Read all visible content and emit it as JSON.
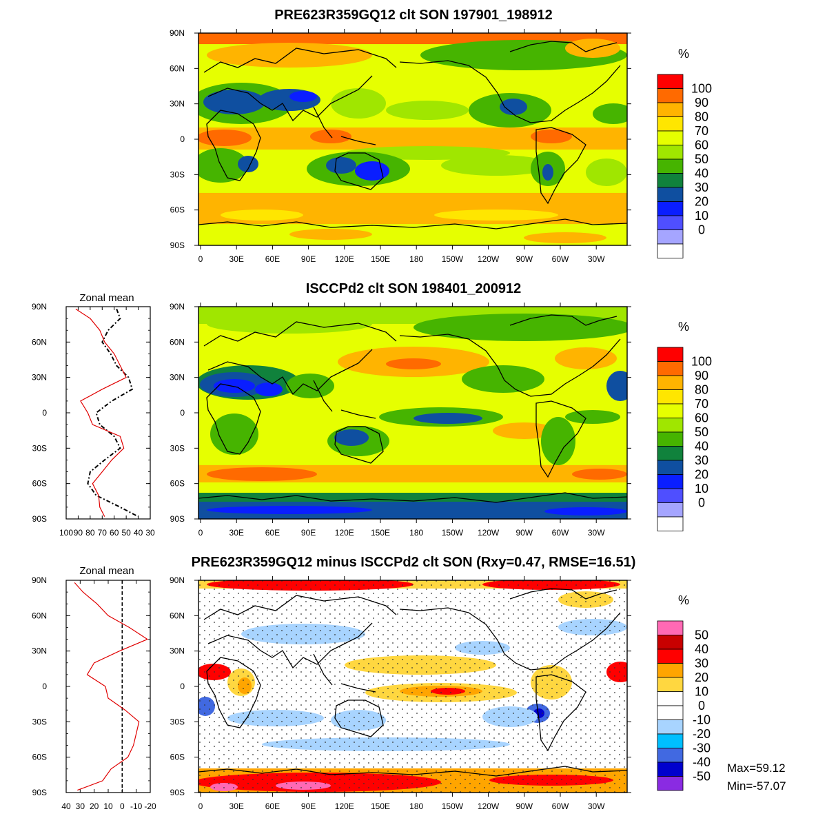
{
  "panels": [
    {
      "title": "PRE623R359GQ12 clt SON 197901_198912",
      "unit_label": "%",
      "lat_ticks": [
        "90N",
        "60N",
        "30N",
        "0",
        "30S",
        "60S",
        "90S"
      ],
      "lon_ticks": [
        "0",
        "30E",
        "60E",
        "90E",
        "120E",
        "150E",
        "180",
        "150W",
        "120W",
        "90W",
        "60W",
        "30W"
      ],
      "colorbar": {
        "labels": [
          "100",
          "90",
          "80",
          "70",
          "60",
          "50",
          "40",
          "30",
          "20",
          "10",
          "0"
        ],
        "colors": [
          "#ff0000",
          "#ff6a00",
          "#ffb400",
          "#ffe600",
          "#e6ff00",
          "#a0e600",
          "#46b400",
          "#10823c",
          "#0f4fa0",
          "#0a1eff",
          "#4f4fff",
          "#a5a5ff",
          "#ffffff"
        ]
      },
      "map_colors": {
        "background": "#e6ff00",
        "high": "#ffb400",
        "veryhigh": "#ff6a00",
        "low": "#46b400",
        "verylow": "#0f4fa0",
        "lowest": "#0a1eff"
      }
    },
    {
      "title": "ISCCPd2 clt SON 198401_200912",
      "unit_label": "%",
      "lat_ticks": [
        "90N",
        "60N",
        "30N",
        "0",
        "30S",
        "60S",
        "90S"
      ],
      "lon_ticks": [
        "0",
        "30E",
        "60E",
        "90E",
        "120E",
        "150E",
        "180",
        "150W",
        "120W",
        "90W",
        "60W",
        "30W"
      ],
      "colorbar": {
        "labels": [
          "100",
          "90",
          "80",
          "70",
          "60",
          "50",
          "40",
          "30",
          "20",
          "10",
          "0"
        ],
        "colors": [
          "#ff0000",
          "#ff6a00",
          "#ffb400",
          "#ffe600",
          "#e6ff00",
          "#a0e600",
          "#46b400",
          "#10823c",
          "#0f4fa0",
          "#0a1eff",
          "#4f4fff",
          "#a5a5ff",
          "#ffffff"
        ]
      },
      "zonal_mean": {
        "title": "Zonal mean",
        "lat_ticks": [
          "90N",
          "60N",
          "30N",
          "0",
          "30S",
          "60S",
          "90S"
        ],
        "x_ticks": [
          "100",
          "90",
          "80",
          "70",
          "60",
          "50",
          "40",
          "30"
        ]
      }
    },
    {
      "title": "PRE623R359GQ12 minus ISCCPd2 clt SON (Rxy=0.47, RMSE=16.51)",
      "unit_label": "%",
      "lat_ticks": [
        "90N",
        "60N",
        "30N",
        "0",
        "30S",
        "60S",
        "90S"
      ],
      "lon_ticks": [
        "0",
        "30E",
        "60E",
        "90E",
        "120E",
        "150E",
        "180",
        "150W",
        "120W",
        "90W",
        "60W",
        "30W"
      ],
      "colorbar": {
        "labels": [
          "50",
          "40",
          "30",
          "20",
          "10",
          "0",
          "-10",
          "-20",
          "-30",
          "-40",
          "-50"
        ],
        "colors": [
          "#ff69b4",
          "#c80000",
          "#ff0000",
          "#ffa500",
          "#ffd740",
          "#ffffff",
          "#ffffff",
          "#a8d4ff",
          "#00bfff",
          "#4169e1",
          "#0000cd",
          "#8a2be2"
        ]
      },
      "zonal_mean": {
        "title": "Zonal mean",
        "lat_ticks": [
          "90N",
          "60N",
          "30N",
          "0",
          "30S",
          "60S",
          "90S"
        ],
        "x_ticks": [
          "40",
          "30",
          "20",
          "10",
          "0",
          "-10",
          "-20"
        ]
      },
      "max_label": "Max=59.12",
      "min_label": "Min=-57.07"
    }
  ],
  "zonal_series": {
    "panel2_model": {
      "lat": [
        88,
        80,
        70,
        60,
        50,
        40,
        30,
        20,
        10,
        0,
        -10,
        -20,
        -30,
        -40,
        -50,
        -60,
        -70,
        -80,
        -88
      ],
      "value": [
        92,
        80,
        72,
        68,
        60,
        55,
        50,
        70,
        88,
        82,
        78,
        55,
        52,
        62,
        70,
        78,
        73,
        72,
        68
      ]
    },
    "panel2_obs": {
      "lat": [
        88,
        80,
        70,
        60,
        50,
        40,
        30,
        20,
        10,
        0,
        -10,
        -20,
        -30,
        -40,
        -50,
        -60,
        -70,
        -80,
        -88
      ],
      "value": [
        58,
        55,
        65,
        70,
        63,
        58,
        48,
        45,
        62,
        75,
        72,
        60,
        55,
        68,
        80,
        82,
        75,
        55,
        40
      ]
    },
    "panel3_diff": {
      "lat": [
        88,
        80,
        70,
        60,
        50,
        40,
        30,
        20,
        10,
        0,
        -10,
        -20,
        -30,
        -40,
        -50,
        -60,
        -70,
        -80,
        -88
      ],
      "value": [
        34,
        28,
        18,
        10,
        -5,
        -18,
        2,
        20,
        25,
        12,
        10,
        -2,
        -12,
        -10,
        -8,
        -4,
        8,
        14,
        32
      ]
    }
  },
  "colors": {
    "model_line": "#e00000",
    "obs_line": "#000000",
    "coast": "#000000"
  }
}
